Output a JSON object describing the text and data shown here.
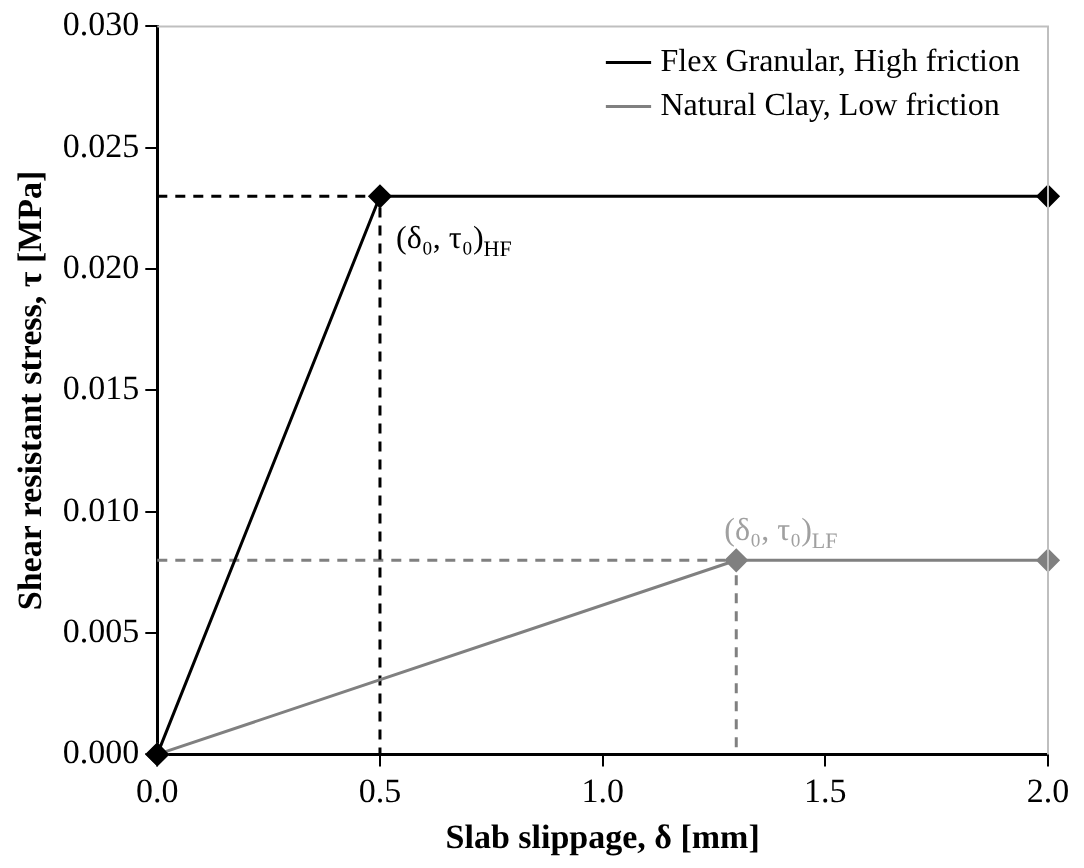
{
  "chart_data": {
    "type": "line",
    "xlabel": "Slab slippage, δ [mm]",
    "ylabel": "Shear resistant stress, τ [MPa]",
    "xlim": [
      0,
      2
    ],
    "xticks": [
      {
        "value": 0,
        "label": "0.0"
      },
      {
        "value": 0.5,
        "label": "0.5"
      },
      {
        "value": 1,
        "label": "1.0"
      },
      {
        "value": 1.5,
        "label": "1.5"
      },
      {
        "value": 2,
        "label": "2.0"
      }
    ],
    "ylim": [
      0,
      0.03
    ],
    "yticks": [
      {
        "value": 0,
        "label": "0.000"
      },
      {
        "value": 0.005,
        "label": "0.005"
      },
      {
        "value": 0.01,
        "label": "0.010"
      },
      {
        "value": 0.015,
        "label": "0.015"
      },
      {
        "value": 0.02,
        "label": "0.020"
      },
      {
        "value": 0.025,
        "label": "0.025"
      },
      {
        "value": 0.03,
        "label": "0.030"
      }
    ],
    "grid": false,
    "legend": "top right",
    "marker": "diamond",
    "series": [
      {
        "name": "Flex Granular, High friction",
        "color": "#000000",
        "x": [
          0,
          0.5,
          2
        ],
        "values": [
          0,
          0.023,
          0.023
        ]
      },
      {
        "name": "Natural Clay, Low friction",
        "color": "#808080",
        "x": [
          0,
          1.3,
          2
        ],
        "values": [
          0,
          0.008,
          0.008
        ]
      },
      {
        "color": "#000000",
        "x": [
          0,
          0.5,
          0.5
        ],
        "values": [
          0.023,
          0.023,
          0
        ],
        "line_style": "dashed",
        "marker": "none"
      },
      {
        "color": "#808080",
        "x": [
          0,
          1.3,
          1.3
        ],
        "values": [
          0.008,
          0.008,
          0
        ],
        "line_style": "dashed",
        "marker": "none"
      }
    ],
    "annotations": [
      {
        "text": "(δ₀, τ₀)$_{HF}$",
        "x": 0.5,
        "y": 0.023
      },
      {
        "text": "(δ₀, τ₀)$_{LF}$",
        "x": 1.3,
        "y": 0.008
      }
    ]
  }
}
